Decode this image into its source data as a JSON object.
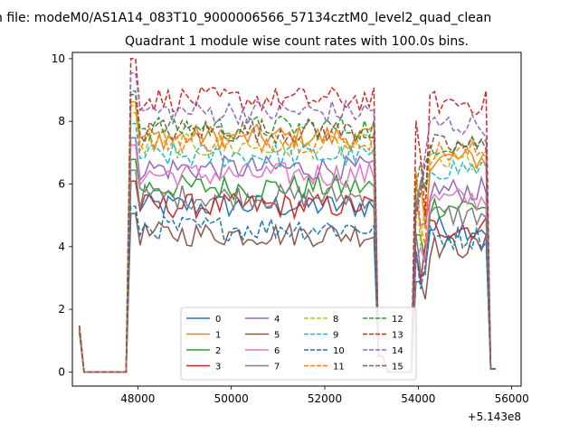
{
  "figure": {
    "suptitle": "n file: modeM0/AS1A14_083T10_9000006566_57134cztM0_level2_quad_clean",
    "title": "Quadrant 1 module wise count rates with 100.0s bins."
  },
  "chart_data": {
    "type": "line",
    "title": "Quadrant 1 module wise count rates with 100.0s bins.",
    "xlabel": "",
    "ylabel": "",
    "x_offset_label": "+5.143e8",
    "xlim": [
      46600,
      56200
    ],
    "ylim": [
      -0.45,
      10.2
    ],
    "xticks": [
      48000,
      50000,
      52000,
      54000,
      56000
    ],
    "xtick_labels": [
      "48000",
      "50000",
      "52000",
      "54000",
      "56000"
    ],
    "yticks": [
      0,
      2,
      4,
      6,
      8,
      10
    ],
    "ytick_labels": [
      "0",
      "2",
      "4",
      "6",
      "8",
      "10"
    ],
    "grid": false,
    "legend_position": "lower-center",
    "legend_columns": 4,
    "segments": [
      {
        "start": 46750,
        "end": 53150,
        "step": 100
      },
      {
        "start": 53250,
        "end": 53950,
        "step": 100
      },
      {
        "start": 54050,
        "end": 55650,
        "step": 100
      }
    ],
    "series": [
      {
        "name": "0",
        "color": "#1f77b4",
        "dash": "solid",
        "level": 5.3,
        "gap_level": 4.6
      },
      {
        "name": "1",
        "color": "#ff7f0e",
        "dash": "solid",
        "level": 7.5,
        "gap_level": 6.8
      },
      {
        "name": "2",
        "color": "#2ca02c",
        "dash": "solid",
        "level": 5.9,
        "gap_level": 5.3
      },
      {
        "name": "3",
        "color": "#d62728",
        "dash": "solid",
        "level": 5.3,
        "gap_level": 4.6
      },
      {
        "name": "4",
        "color": "#9467bd",
        "dash": "solid",
        "level": 6.5,
        "gap_level": 5.8
      },
      {
        "name": "5",
        "color": "#8c564b",
        "dash": "solid",
        "level": 4.4,
        "gap_level": 4.0
      },
      {
        "name": "6",
        "color": "#e377c2",
        "dash": "solid",
        "level": 6.3,
        "gap_level": 5.5
      },
      {
        "name": "7",
        "color": "#7f7f7f",
        "dash": "solid",
        "level": 5.6,
        "gap_level": 5.0
      },
      {
        "name": "8",
        "color": "#bcbd22",
        "dash": "dashed",
        "level": 7.2,
        "gap_level": 6.7
      },
      {
        "name": "9",
        "color": "#17becf",
        "dash": "dashed",
        "level": 6.9,
        "gap_level": 6.5
      },
      {
        "name": "10",
        "color": "#1f77b4",
        "dash": "dashed",
        "level": 4.6,
        "gap_level": 4.3
      },
      {
        "name": "11",
        "color": "#ff7f0e",
        "dash": "dashed",
        "level": 7.4,
        "gap_level": 7.0
      },
      {
        "name": "12",
        "color": "#2ca02c",
        "dash": "dashed",
        "level": 7.8,
        "gap_level": 7.3
      },
      {
        "name": "13",
        "color": "#d62728",
        "dash": "dashed",
        "level": 8.7,
        "gap_level": 8.6
      },
      {
        "name": "14",
        "color": "#9467bd",
        "dash": "dashed",
        "level": 8.3,
        "gap_level": 7.9
      },
      {
        "name": "15",
        "color": "#8c564b",
        "dash": "dashed",
        "level": 7.7,
        "gap_level": 7.2
      }
    ]
  }
}
